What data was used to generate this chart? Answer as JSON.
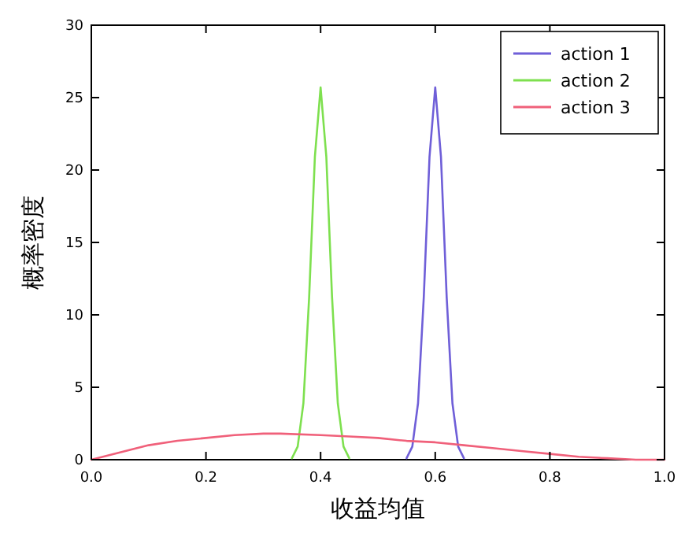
{
  "chart_data": {
    "type": "line",
    "xlabel": "收益均值",
    "ylabel": "概率密度",
    "xlim": [
      0,
      1
    ],
    "ylim": [
      0,
      30
    ],
    "xticks": [
      {
        "value": 0,
        "label": "0.0"
      },
      {
        "value": 0.2,
        "label": "0.2"
      },
      {
        "value": 0.4,
        "label": "0.4"
      },
      {
        "value": 0.6,
        "label": "0.6"
      },
      {
        "value": 0.8,
        "label": "0.8"
      },
      {
        "value": 1,
        "label": "1.0"
      }
    ],
    "yticks": [
      0,
      5,
      10,
      15,
      20,
      25,
      30
    ],
    "legend": "top right",
    "line_style": "solid",
    "series": [
      {
        "name": "action 1",
        "color": "#6f5fd8",
        "x": [
          0.55,
          0.56,
          0.57,
          0.58,
          0.59,
          0.6,
          0.61,
          0.62,
          0.63,
          0.64,
          0.65
        ],
        "values": [
          0.1,
          0.9,
          3.9,
          11.2,
          20.9,
          25.7,
          20.9,
          11.2,
          3.9,
          0.9,
          0.1
        ]
      },
      {
        "name": "action 2",
        "color": "#7ee04f",
        "x": [
          0.35,
          0.36,
          0.37,
          0.38,
          0.39,
          0.4,
          0.41,
          0.42,
          0.43,
          0.44,
          0.45
        ],
        "values": [
          0.1,
          0.9,
          3.9,
          11.2,
          20.9,
          25.7,
          20.9,
          11.2,
          3.9,
          0.9,
          0.1
        ]
      },
      {
        "name": "action 3",
        "color": "#f0607a",
        "x": [
          0,
          0.05,
          0.1,
          0.15,
          0.2,
          0.25,
          0.3,
          0.33,
          0.4,
          0.45,
          0.5,
          0.55,
          0.6,
          0.65,
          0.7,
          0.75,
          0.8,
          0.85,
          0.9,
          0.95,
          1
        ],
        "values": [
          0,
          0.5,
          1,
          1.3,
          1.5,
          1.7,
          1.8,
          1.8,
          1.7,
          1.6,
          1.5,
          1.3,
          1.2,
          1,
          0.8,
          0.6,
          0.4,
          0.2,
          0.1,
          0,
          0
        ]
      }
    ]
  }
}
